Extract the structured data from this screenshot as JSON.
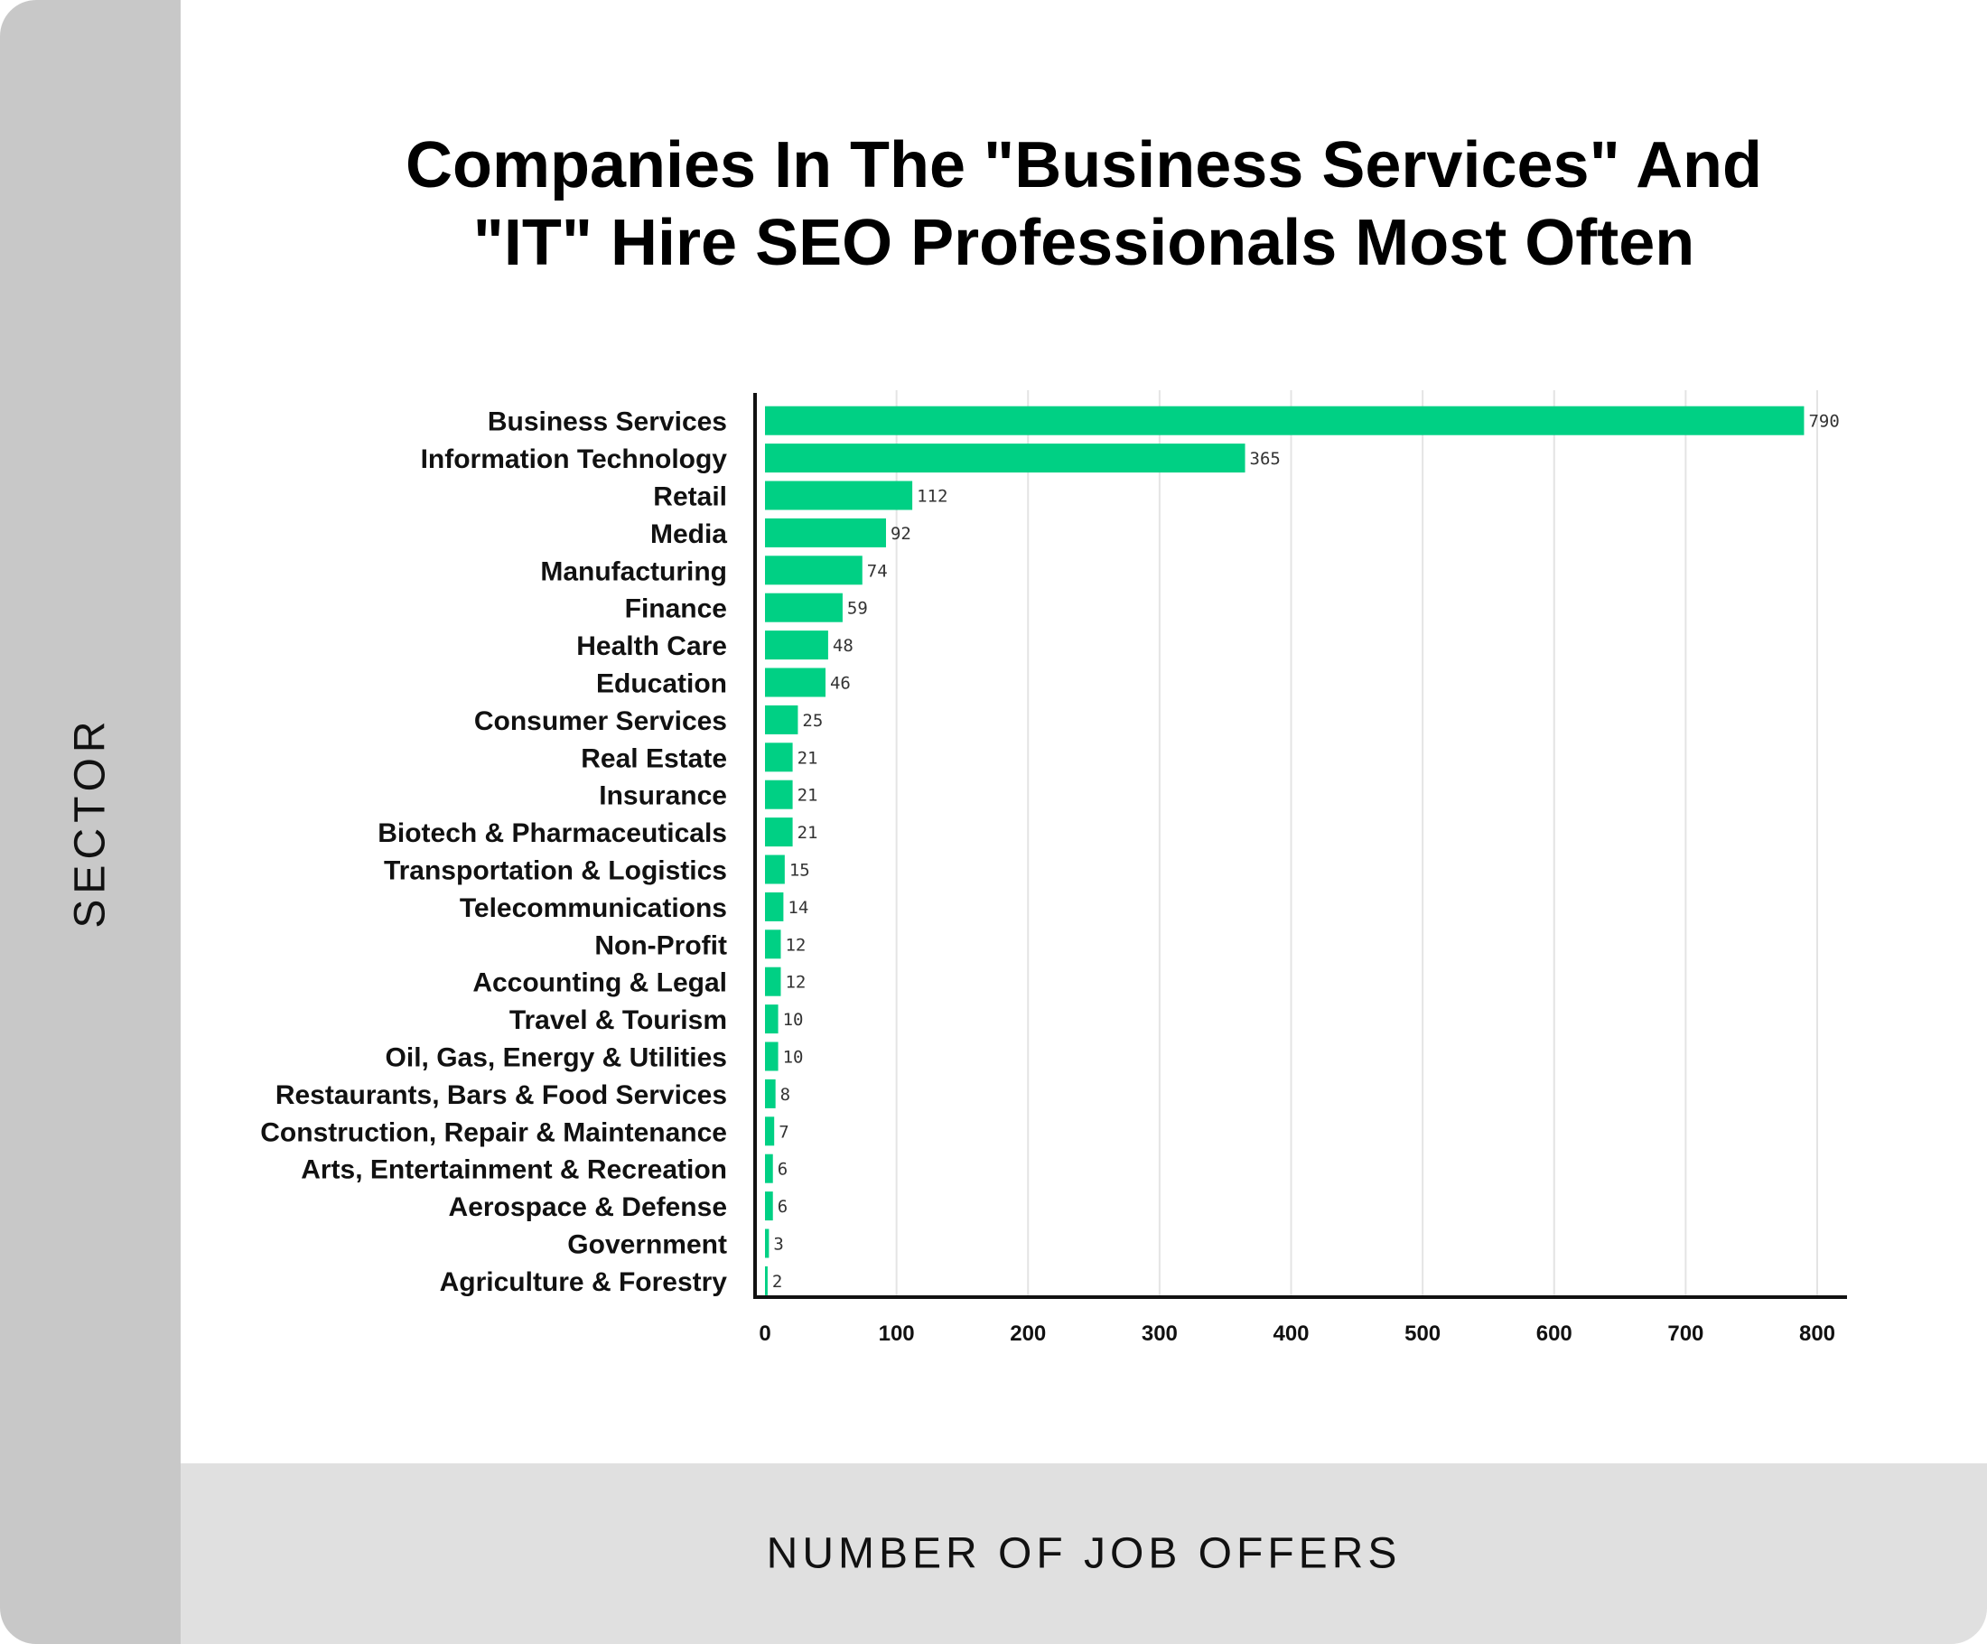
{
  "chart_data": {
    "type": "bar",
    "orientation": "horizontal",
    "title_lines": [
      "Companies In The \"Business Services\" And",
      "\"IT\" Hire SEO Professionals Most Often"
    ],
    "xlabel": "NUMBER OF JOB OFFERS",
    "ylabel": "SECTOR",
    "xlim": [
      0,
      800
    ],
    "xticks": [
      0,
      100,
      200,
      300,
      400,
      500,
      600,
      700,
      800
    ],
    "grid": "vertical",
    "bar_color": "#00d084",
    "categories": [
      "Business Services",
      "Information Technology",
      "Retail",
      "Media",
      "Manufacturing",
      "Finance",
      "Health Care",
      "Education",
      "Consumer Services",
      "Real Estate",
      "Insurance",
      "Biotech & Pharmaceuticals",
      "Transportation & Logistics",
      "Telecommunications",
      "Non-Profit",
      "Accounting & Legal",
      "Travel & Tourism",
      "Oil, Gas, Energy & Utilities",
      "Restaurants, Bars & Food Services",
      "Construction, Repair & Maintenance",
      "Arts, Entertainment & Recreation",
      "Aerospace & Defense",
      "Government",
      "Agriculture & Forestry"
    ],
    "values": [
      790,
      365,
      112,
      92,
      74,
      59,
      48,
      46,
      25,
      21,
      21,
      21,
      15,
      14,
      12,
      12,
      10,
      10,
      8,
      7,
      6,
      6,
      3,
      2
    ]
  }
}
